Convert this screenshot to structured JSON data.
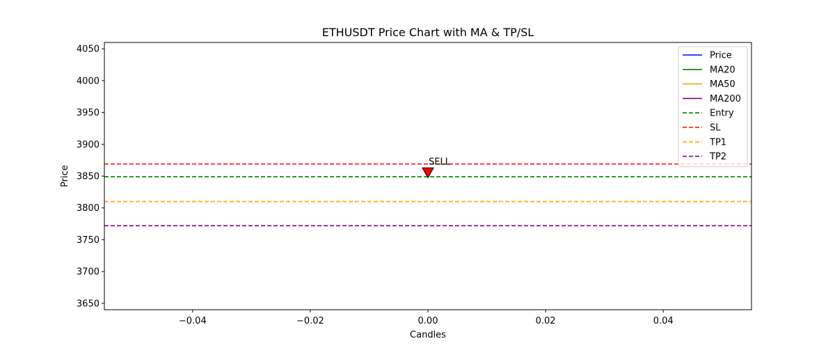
{
  "chart_data": {
    "type": "line",
    "title": "ETHUSDT Price Chart with MA & TP/SL",
    "xlabel": "Candles",
    "ylabel": "Price",
    "xlim": [
      -0.055,
      0.055
    ],
    "ylim": [
      3640,
      4060
    ],
    "x_ticks": [
      -0.04,
      -0.02,
      0.0,
      0.02,
      0.04
    ],
    "x_tick_labels": [
      "−0.04",
      "−0.02",
      "0.00",
      "0.02",
      "0.04"
    ],
    "y_ticks": [
      3650,
      3700,
      3750,
      3800,
      3850,
      3900,
      3950,
      4000,
      4050
    ],
    "y_tick_labels": [
      "3650",
      "3700",
      "3750",
      "3800",
      "3850",
      "3900",
      "3950",
      "4000",
      "4050"
    ],
    "grid": false,
    "legend_position": "top-right",
    "series": [
      {
        "name": "Price",
        "color": "#0000ff",
        "style": "solid",
        "x": [],
        "y": []
      },
      {
        "name": "MA20",
        "color": "#008000",
        "style": "solid",
        "x": [],
        "y": []
      },
      {
        "name": "MA50",
        "color": "#ffa500",
        "style": "solid",
        "x": [],
        "y": []
      },
      {
        "name": "MA200",
        "color": "#800080",
        "style": "solid",
        "x": [],
        "y": []
      }
    ],
    "hlines": [
      {
        "name": "Entry",
        "y": 3849,
        "color": "#008000",
        "style": "dashed"
      },
      {
        "name": "SL",
        "y": 3869,
        "color": "#ff0000",
        "style": "dashed"
      },
      {
        "name": "TP1",
        "y": 3810,
        "color": "#ffa500",
        "style": "dashed"
      },
      {
        "name": "TP2",
        "y": 3772,
        "color": "#800080",
        "style": "dashed"
      }
    ],
    "markers": [
      {
        "label": "SELL",
        "x": 0.0,
        "y": 3856,
        "shape": "triangle-down",
        "color": "#ff0000"
      }
    ]
  }
}
